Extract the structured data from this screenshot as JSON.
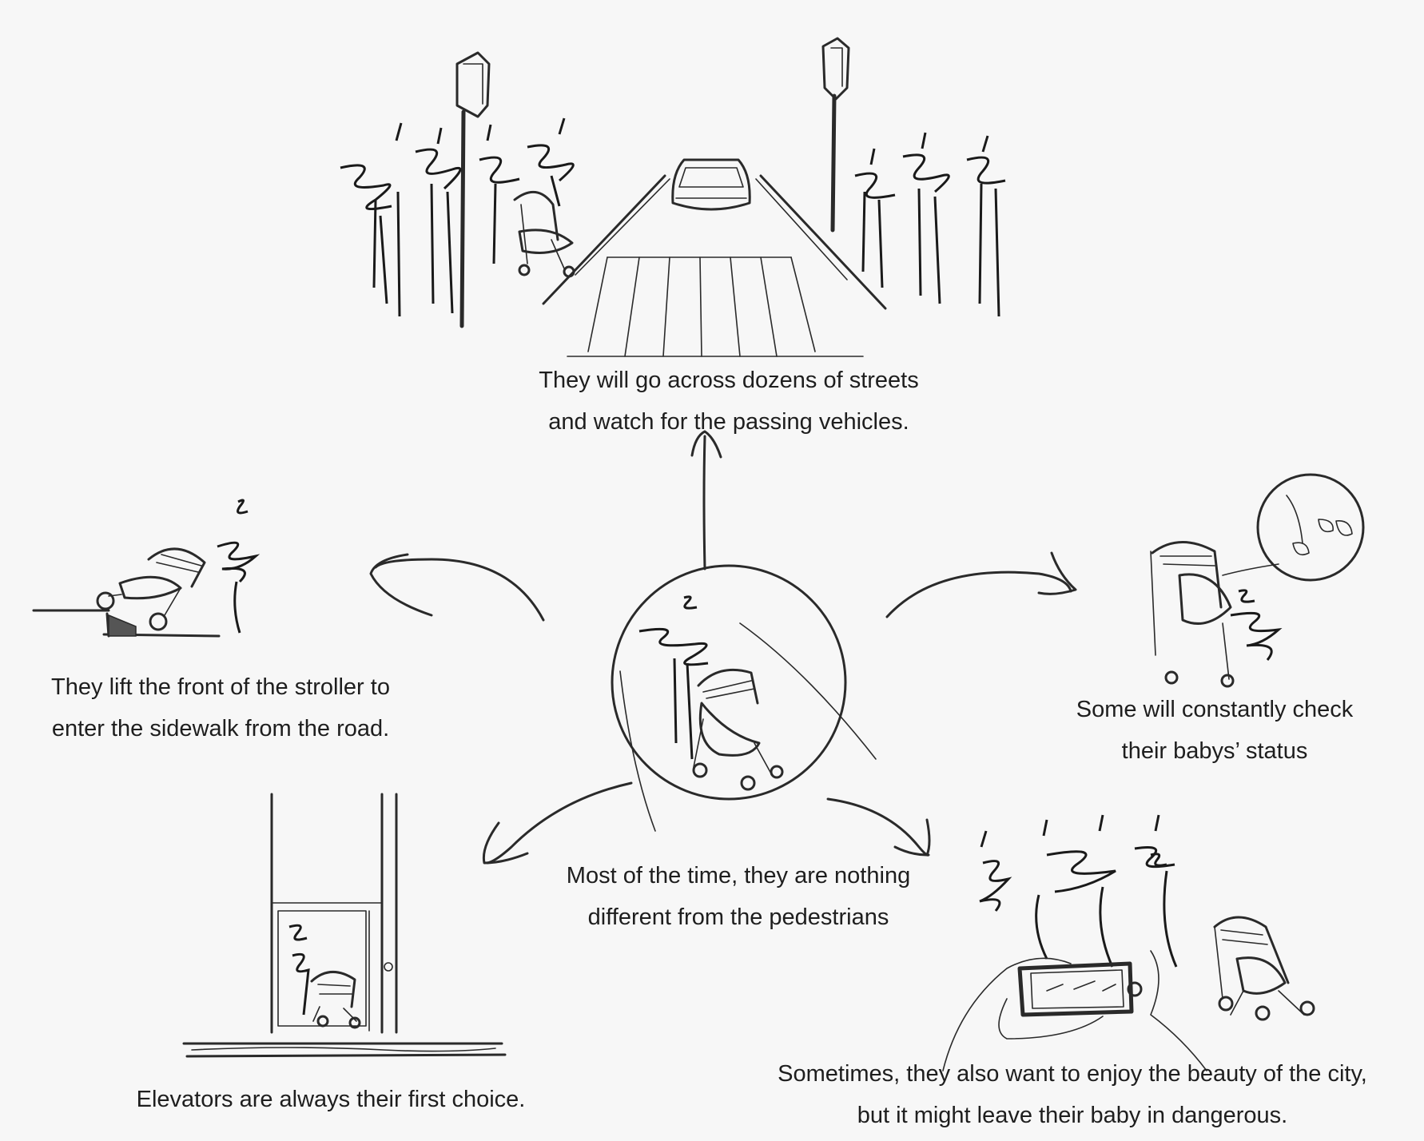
{
  "captions": {
    "streets": {
      "line1": "They will go across dozens of streets",
      "line2": "and watch for the passing vehicles."
    },
    "sidewalk": {
      "line1": "They lift the front of the stroller to",
      "line2": "enter the sidewalk from the road."
    },
    "check_status": {
      "line1": "Some will constantly check",
      "line2": "their babys’ status"
    },
    "center": {
      "line1": "Most of the time, they are nothing",
      "line2": "different from the pedestrians"
    },
    "elevator": {
      "line1": "Elevators are always their first choice."
    },
    "city_beauty": {
      "line1": "Sometimes, they also want to enjoy the beauty of the city,",
      "line2": "but it might leave their baby in dangerous."
    }
  },
  "colors": {
    "background": "#f7f7f7",
    "ink": "#2a2a2a"
  }
}
